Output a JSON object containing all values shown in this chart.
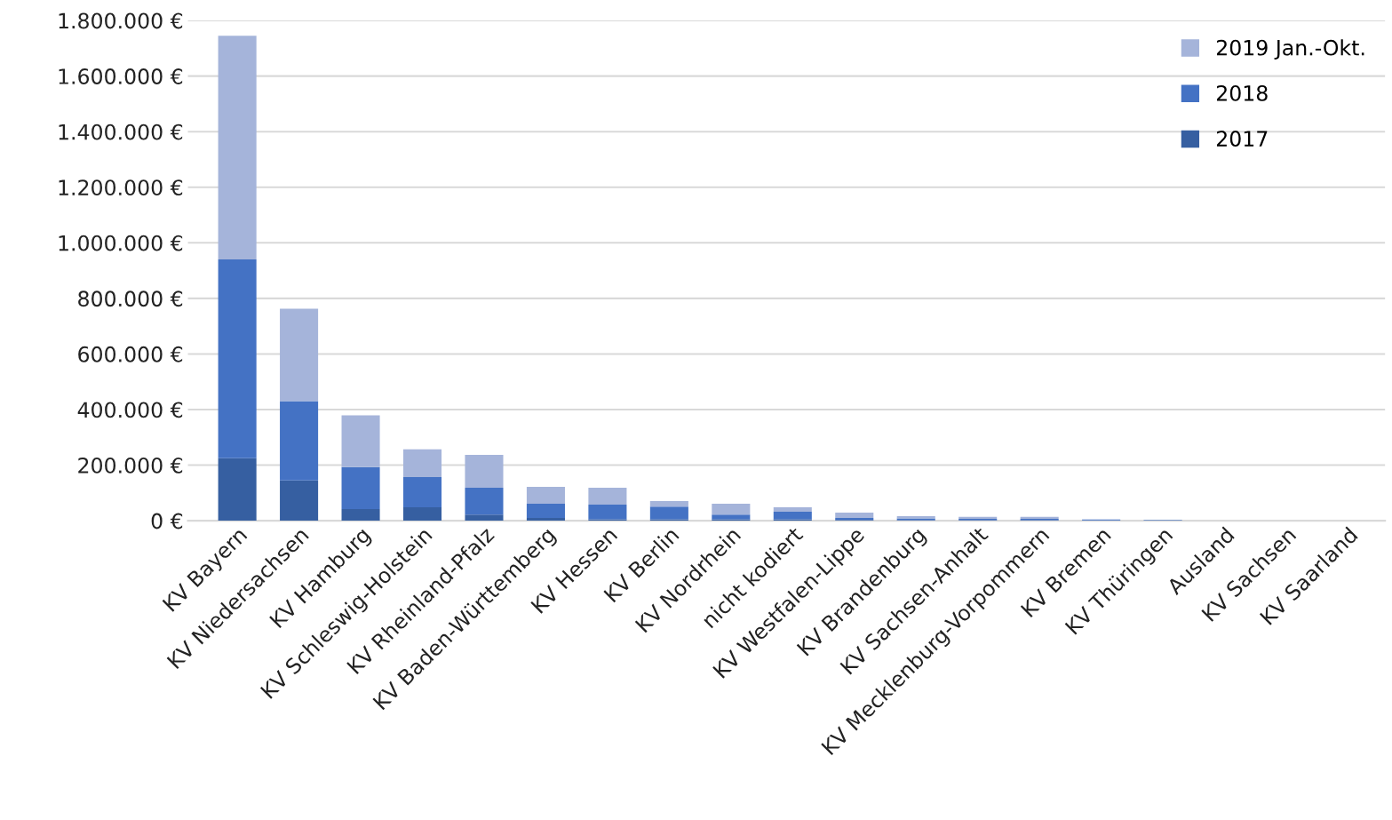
{
  "chart_data": {
    "type": "bar",
    "stacked": true,
    "categories": [
      "KV Bayern",
      "KV Niedersachsen",
      "KV Hamburg",
      "KV Schleswig-Holstein",
      "KV Rheinland-Pfalz",
      "KV Baden-Württemberg",
      "KV Hessen",
      "KV Berlin",
      "KV Nordrhein",
      "nicht kodiert",
      "KV Westfalen-Lippe",
      "KV Brandenburg",
      "KV Sachsen-Anhalt",
      "KV Mecklenburg-Vorpommern",
      "KV Bremen",
      "KV Thüringen",
      "Ausland",
      "KV Sachsen",
      "KV Saarland"
    ],
    "series": [
      {
        "name": "2017",
        "color": "#365fa1",
        "values": [
          225000,
          145000,
          42000,
          48000,
          22000,
          10000,
          5000,
          5000,
          5000,
          5000,
          3000,
          2000,
          2000,
          2000,
          1000,
          1000,
          0,
          0,
          0
        ]
      },
      {
        "name": "2018",
        "color": "#4472c4",
        "values": [
          715000,
          285000,
          151000,
          109000,
          97000,
          51000,
          53000,
          46000,
          17000,
          27000,
          7000,
          6000,
          5000,
          5000,
          3000,
          2000,
          null,
          0,
          0
        ]
      },
      {
        "name": "2019 Jan.-Okt.",
        "color": "#a5b4da",
        "values": [
          805000,
          333000,
          186000,
          100000,
          118000,
          61000,
          61000,
          20000,
          39000,
          16000,
          19000,
          8000,
          7000,
          7000,
          null,
          null,
          null,
          0,
          0
        ]
      }
    ],
    "ylim": [
      0,
      1800000
    ],
    "yticks": [
      {
        "value": 0,
        "label": "0 €"
      },
      {
        "value": 200000,
        "label": "200.000 €"
      },
      {
        "value": 400000,
        "label": "400.000 €"
      },
      {
        "value": 600000,
        "label": "600.000 €"
      },
      {
        "value": 800000,
        "label": "800.000 €"
      },
      {
        "value": 1000000,
        "label": "1.000.000 €"
      },
      {
        "value": 1200000,
        "label": "1.200.000 €"
      },
      {
        "value": 1400000,
        "label": "1.400.000 €"
      },
      {
        "value": 1600000,
        "label": "1.600.000 €"
      },
      {
        "value": 1800000,
        "label": "1.800.000 €"
      }
    ],
    "grid": "y",
    "legend": "top right"
  }
}
